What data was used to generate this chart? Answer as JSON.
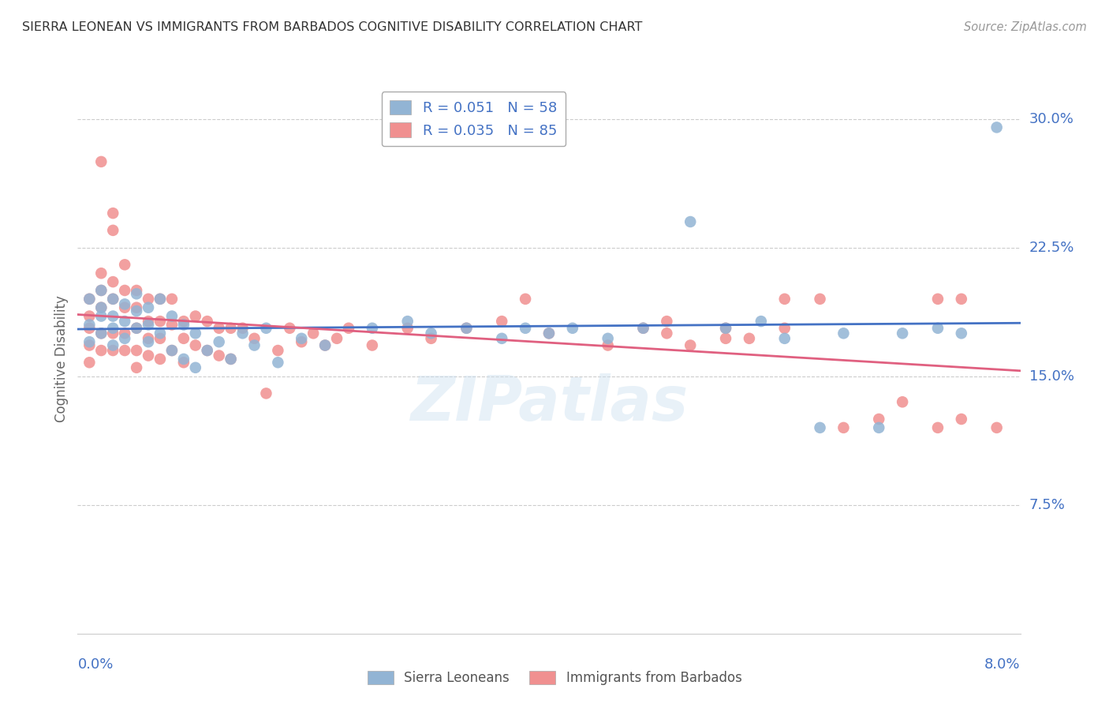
{
  "title": "SIERRA LEONEAN VS IMMIGRANTS FROM BARBADOS COGNITIVE DISABILITY CORRELATION CHART",
  "source": "Source: ZipAtlas.com",
  "ylabel": "Cognitive Disability",
  "yticks": [
    0.075,
    0.15,
    0.225,
    0.3
  ],
  "ytick_labels": [
    "7.5%",
    "15.0%",
    "22.5%",
    "30.0%"
  ],
  "xlim": [
    0.0,
    0.08
  ],
  "ylim": [
    0.0,
    0.32
  ],
  "legend_label_blue": "Sierra Leoneans",
  "legend_label_pink": "Immigrants from Barbados",
  "blue_color": "#92b4d4",
  "pink_color": "#f09090",
  "trendline_blue_color": "#4472c4",
  "trendline_pink_color": "#e06080",
  "background_color": "#ffffff",
  "watermark": "ZIPatlas",
  "sierra_x": [
    0.001,
    0.001,
    0.001,
    0.002,
    0.002,
    0.002,
    0.002,
    0.003,
    0.003,
    0.003,
    0.003,
    0.004,
    0.004,
    0.004,
    0.005,
    0.005,
    0.005,
    0.006,
    0.006,
    0.006,
    0.007,
    0.007,
    0.008,
    0.008,
    0.009,
    0.009,
    0.01,
    0.01,
    0.011,
    0.012,
    0.013,
    0.014,
    0.015,
    0.016,
    0.017,
    0.019,
    0.021,
    0.025,
    0.028,
    0.03,
    0.033,
    0.036,
    0.038,
    0.04,
    0.042,
    0.045,
    0.048,
    0.052,
    0.055,
    0.058,
    0.06,
    0.063,
    0.065,
    0.068,
    0.07,
    0.073,
    0.075,
    0.078
  ],
  "sierra_y": [
    0.195,
    0.18,
    0.17,
    0.2,
    0.19,
    0.185,
    0.175,
    0.195,
    0.185,
    0.178,
    0.168,
    0.192,
    0.182,
    0.172,
    0.198,
    0.188,
    0.178,
    0.19,
    0.18,
    0.17,
    0.195,
    0.175,
    0.185,
    0.165,
    0.18,
    0.16,
    0.175,
    0.155,
    0.165,
    0.17,
    0.16,
    0.175,
    0.168,
    0.178,
    0.158,
    0.172,
    0.168,
    0.178,
    0.182,
    0.175,
    0.178,
    0.172,
    0.178,
    0.175,
    0.178,
    0.172,
    0.178,
    0.24,
    0.178,
    0.182,
    0.172,
    0.12,
    0.175,
    0.12,
    0.175,
    0.178,
    0.175,
    0.295
  ],
  "barbados_x": [
    0.001,
    0.001,
    0.001,
    0.001,
    0.001,
    0.002,
    0.002,
    0.002,
    0.002,
    0.002,
    0.002,
    0.003,
    0.003,
    0.003,
    0.003,
    0.003,
    0.003,
    0.004,
    0.004,
    0.004,
    0.004,
    0.004,
    0.005,
    0.005,
    0.005,
    0.005,
    0.005,
    0.006,
    0.006,
    0.006,
    0.006,
    0.007,
    0.007,
    0.007,
    0.007,
    0.008,
    0.008,
    0.008,
    0.009,
    0.009,
    0.009,
    0.01,
    0.01,
    0.011,
    0.011,
    0.012,
    0.012,
    0.013,
    0.013,
    0.014,
    0.015,
    0.016,
    0.017,
    0.018,
    0.019,
    0.02,
    0.021,
    0.022,
    0.023,
    0.025,
    0.028,
    0.03,
    0.033,
    0.036,
    0.038,
    0.04,
    0.045,
    0.048,
    0.05,
    0.055,
    0.06,
    0.063,
    0.065,
    0.068,
    0.07,
    0.073,
    0.073,
    0.075,
    0.075,
    0.078,
    0.05,
    0.052,
    0.055,
    0.057,
    0.06
  ],
  "barbados_y": [
    0.195,
    0.185,
    0.178,
    0.168,
    0.158,
    0.275,
    0.21,
    0.2,
    0.19,
    0.175,
    0.165,
    0.245,
    0.235,
    0.205,
    0.195,
    0.175,
    0.165,
    0.215,
    0.2,
    0.19,
    0.175,
    0.165,
    0.2,
    0.19,
    0.178,
    0.165,
    0.155,
    0.195,
    0.182,
    0.172,
    0.162,
    0.195,
    0.182,
    0.172,
    0.16,
    0.195,
    0.18,
    0.165,
    0.182,
    0.172,
    0.158,
    0.185,
    0.168,
    0.182,
    0.165,
    0.178,
    0.162,
    0.178,
    0.16,
    0.178,
    0.172,
    0.14,
    0.165,
    0.178,
    0.17,
    0.175,
    0.168,
    0.172,
    0.178,
    0.168,
    0.178,
    0.172,
    0.178,
    0.182,
    0.195,
    0.175,
    0.168,
    0.178,
    0.182,
    0.172,
    0.178,
    0.195,
    0.12,
    0.125,
    0.135,
    0.195,
    0.12,
    0.125,
    0.195,
    0.12,
    0.175,
    0.168,
    0.178,
    0.172,
    0.195
  ]
}
